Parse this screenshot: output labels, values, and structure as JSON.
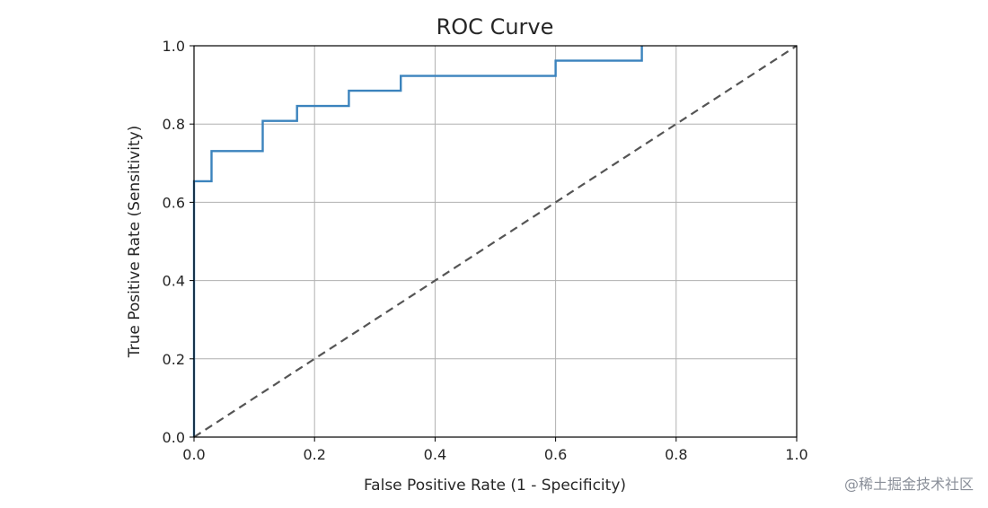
{
  "chart_data": {
    "type": "line",
    "title": "ROC Curve",
    "xlabel": "False Positive Rate (1 - Specificity)",
    "ylabel": "True Positive Rate (Sensitivity)",
    "xlim": [
      0.0,
      1.0
    ],
    "ylim": [
      0.0,
      1.0
    ],
    "xticks": [
      0.0,
      0.2,
      0.4,
      0.6,
      0.8,
      1.0
    ],
    "yticks": [
      0.0,
      0.2,
      0.4,
      0.6,
      0.8,
      1.0
    ],
    "xtick_labels": [
      "0.0",
      "0.2",
      "0.4",
      "0.6",
      "0.8",
      "1.0"
    ],
    "ytick_labels": [
      "0.0",
      "0.2",
      "0.4",
      "0.6",
      "0.8",
      "1.0"
    ],
    "grid": true,
    "series": [
      {
        "style": "step",
        "color": "#3b83bd",
        "x": [
          0.0,
          0.0,
          0.029,
          0.029,
          0.114,
          0.114,
          0.171,
          0.171,
          0.257,
          0.257,
          0.343,
          0.343,
          0.6,
          0.6,
          0.743,
          0.743
        ],
        "y": [
          0.0,
          0.654,
          0.654,
          0.731,
          0.731,
          0.808,
          0.808,
          0.846,
          0.846,
          0.885,
          0.885,
          0.923,
          0.923,
          0.962,
          0.962,
          1.0
        ]
      },
      {
        "style": "dashed",
        "color": "#555555",
        "x": [
          0.0,
          1.0
        ],
        "y": [
          0.0,
          1.0
        ]
      }
    ]
  },
  "watermark": "@稀土掘金技术社区"
}
